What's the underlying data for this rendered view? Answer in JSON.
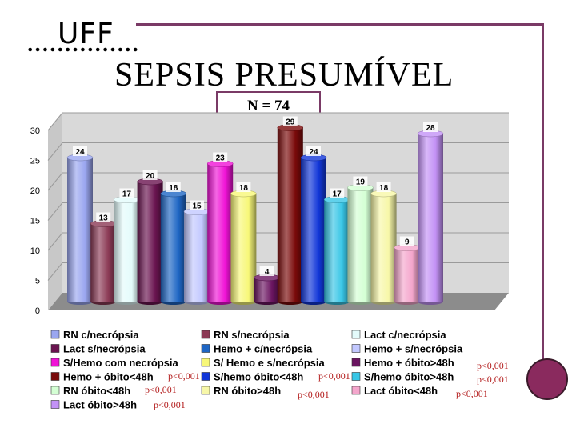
{
  "header": {
    "logo_text": "UFF",
    "title": "SEPSIS  PRESUMÍVEL",
    "n_label": "N = 74"
  },
  "chart_data": {
    "type": "bar",
    "style": "3d-cylinder",
    "title": "",
    "xlabel": "",
    "ylabel": "",
    "ylim": [
      0,
      30
    ],
    "yticks": [
      0,
      5,
      10,
      15,
      20,
      25,
      30
    ],
    "grid": true,
    "legend_position": "bottom",
    "categories": [
      "RN c/necrópsia",
      "RN s/necrópsia",
      "Lact c/necrópsia",
      "Lact s/necrópsia",
      "Hemo + c/necrópsia",
      "Hemo + s/necrópsia",
      "S/Hemo com necrópsia",
      "S/ Hemo e s/necrópsia",
      "Hemo + óbito>48h",
      "Hemo + óbito<48h",
      "S/hemo óbito<48h",
      "S/hemo óbito>48h",
      "RN óbito<48h",
      "RN óbito>48h",
      "Lact óbito<48h",
      "Lact óbito>48h"
    ],
    "values": [
      24,
      13,
      17,
      20,
      18,
      15,
      23,
      18,
      4,
      29,
      24,
      17,
      19,
      18,
      9,
      28
    ],
    "colors": [
      "#9aa6f0",
      "#8b3a55",
      "#e4fbfb",
      "#6a1450",
      "#1e66c4",
      "#c2c8ff",
      "#f013d6",
      "#f7f778",
      "#6a1460",
      "#7a0a0a",
      "#1136d8",
      "#38c6e6",
      "#d4ffd4",
      "#f7f7a8",
      "#f4a6cc",
      "#c392f6"
    ],
    "annotations": [
      {
        "text": "p<0,001",
        "near": "Hemo + óbito>48h"
      },
      {
        "text": "p<0,001",
        "near": "Hemo + óbito<48h"
      },
      {
        "text": "p<0,001",
        "near": "S/hemo óbito<48h"
      },
      {
        "text": "p<0,001",
        "near": "S/hemo óbito>48h"
      },
      {
        "text": "p<0,001",
        "near": "RN óbito<48h"
      },
      {
        "text": "p<0,001",
        "near": "RN óbito>48h"
      },
      {
        "text": "p<0,001",
        "near": "Lact óbito<48h"
      },
      {
        "text": "p<0,001",
        "near": "Lact óbito>48h"
      }
    ]
  }
}
